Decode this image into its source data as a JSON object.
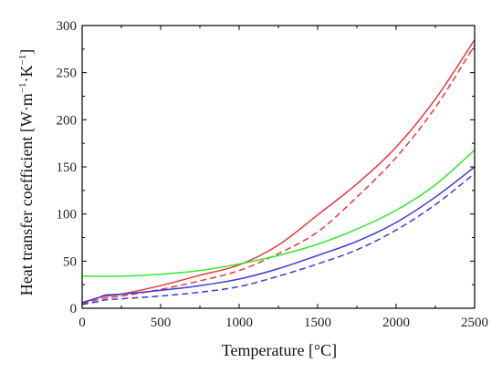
{
  "chart_data": {
    "type": "line",
    "xlabel": "Temperature  [°C]",
    "ylabel": {
      "main": "Heat transfer coefficient  [W·m",
      "exp1": "−1",
      "mid": "·K",
      "exp2": "−1",
      "end": "]"
    },
    "xlim": [
      0,
      2500
    ],
    "ylim": [
      0,
      300
    ],
    "x_ticks": [
      0,
      500,
      1000,
      1500,
      2000,
      2500
    ],
    "y_ticks": [
      0,
      50,
      100,
      150,
      200,
      250,
      300
    ],
    "grid": false,
    "series": [
      {
        "color": "#e8383d",
        "dash": "solid",
        "x": [
          0,
          100,
          150,
          250,
          500,
          750,
          1000,
          1250,
          1500,
          1750,
          2000,
          2250,
          2500
        ],
        "values": [
          6,
          11,
          13,
          15,
          24,
          35,
          46,
          67,
          99,
          132,
          171,
          222,
          285
        ]
      },
      {
        "color": "#e8383d",
        "dash": "dashed",
        "x": [
          0,
          100,
          150,
          250,
          500,
          750,
          1000,
          1250,
          1500,
          1750,
          2000,
          2250,
          2500
        ],
        "values": [
          5,
          9,
          11,
          13,
          20,
          29,
          40,
          58,
          81,
          118,
          160,
          213,
          279
        ]
      },
      {
        "color": "#33e633",
        "dash": "solid",
        "x": [
          0,
          250,
          500,
          750,
          1000,
          1250,
          1500,
          1750,
          2000,
          2250,
          2500
        ],
        "values": [
          34,
          34,
          36,
          40,
          47,
          56,
          68,
          84,
          104,
          131,
          168
        ]
      },
      {
        "color": "#3a3ad6",
        "dash": "solid",
        "x": [
          0,
          100,
          150,
          250,
          500,
          750,
          1000,
          1250,
          1500,
          1750,
          2000,
          2250,
          2500
        ],
        "values": [
          6,
          11,
          14,
          15,
          19,
          24,
          31,
          42,
          56,
          71,
          91,
          118,
          150
        ]
      },
      {
        "color": "#3a3ad6",
        "dash": "dashed",
        "x": [
          0,
          100,
          150,
          250,
          500,
          750,
          1000,
          1250,
          1500,
          1750,
          2000,
          2250,
          2500
        ],
        "values": [
          4,
          7,
          9,
          10,
          13,
          17,
          23,
          34,
          47,
          62,
          83,
          110,
          143
        ]
      }
    ]
  }
}
